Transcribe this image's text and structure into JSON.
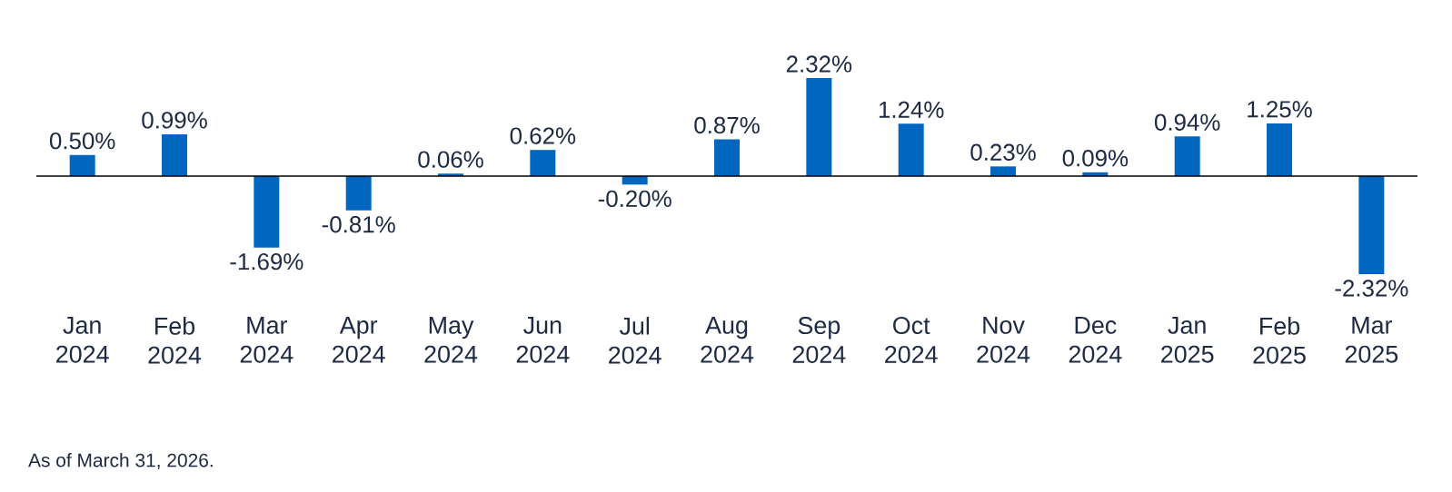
{
  "chart_data": {
    "type": "bar",
    "categories": [
      "Jan 2024",
      "Feb 2024",
      "Mar 2024",
      "Apr 2024",
      "May 2024",
      "Jun 2024",
      "Jul 2024",
      "Aug 2024",
      "Sep 2024",
      "Oct 2024",
      "Nov 2024",
      "Dec 2024",
      "Jan 2025",
      "Feb 2025",
      "Mar 2025"
    ],
    "values": [
      0.5,
      0.99,
      -1.69,
      -0.81,
      0.06,
      0.62,
      -0.2,
      0.87,
      2.32,
      1.24,
      0.23,
      0.09,
      0.94,
      1.25,
      -2.32
    ],
    "value_labels": [
      "0.50%",
      "0.99%",
      "-1.69%",
      "-0.81%",
      "0.06%",
      "0.62%",
      "-0.20%",
      "0.87%",
      "2.32%",
      "1.24%",
      "0.23%",
      "0.09%",
      "0.94%",
      "1.25%",
      "-2.32%"
    ],
    "color": "#0066c0",
    "annotations": [
      "As of March 31, 2026."
    ]
  }
}
